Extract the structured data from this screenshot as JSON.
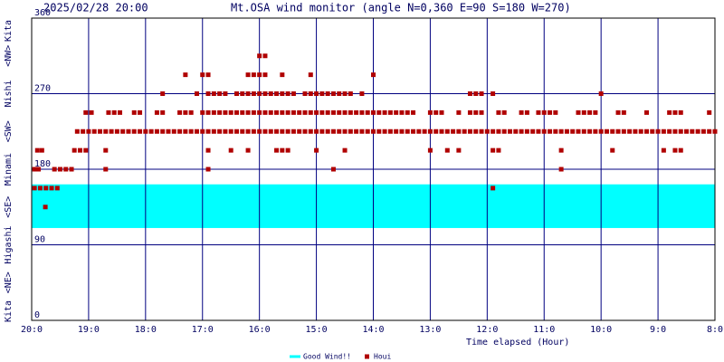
{
  "chart_data": {
    "type": "scatter",
    "timestamp": "2025/02/28 20:00",
    "title": "Mt.OSA wind monitor (angle N=0,360 E=90 S=180 W=270)",
    "x_label": "Time elapsed (Hour)",
    "y_direction_labels": [
      {
        "value": 0,
        "label": "Kita"
      },
      {
        "value": 45,
        "label": "<NE>"
      },
      {
        "value": 90,
        "label": "Higashi"
      },
      {
        "value": 135,
        "label": "<SE>"
      },
      {
        "value": 180,
        "label": "Minami"
      },
      {
        "value": 225,
        "label": "<SW>"
      },
      {
        "value": 270,
        "label": "Nishi"
      },
      {
        "value": 315,
        "label": "<NW>"
      },
      {
        "value": 360,
        "label": "Kita"
      }
    ],
    "xlim": [
      0,
      12
    ],
    "xticks": [
      {
        "value": 0,
        "label": "20:0"
      },
      {
        "value": 1,
        "label": "19:0"
      },
      {
        "value": 2,
        "label": "18:0"
      },
      {
        "value": 3,
        "label": "17:0"
      },
      {
        "value": 4,
        "label": "16:0"
      },
      {
        "value": 5,
        "label": "15:0"
      },
      {
        "value": 6,
        "label": "14:0"
      },
      {
        "value": 7,
        "label": "13:0"
      },
      {
        "value": 8,
        "label": "12:0"
      },
      {
        "value": 9,
        "label": "11:0"
      },
      {
        "value": 10,
        "label": "10:0"
      },
      {
        "value": 11,
        "label": "9:0"
      },
      {
        "value": 12,
        "label": "8:0"
      }
    ],
    "ylim": [
      0,
      360
    ],
    "yticks": [
      0,
      90,
      180,
      270,
      360
    ],
    "grid": true,
    "good_wind": {
      "name": "Good Wind!!",
      "color": "#00ffff",
      "range": [
        110,
        162
      ]
    },
    "series": [
      {
        "name": "Houi",
        "color": "#b00000",
        "x": [
          0.05,
          0.15,
          0.25,
          0.35,
          0.45,
          8.1,
          0.24,
          0.05,
          0.12,
          0.4,
          0.5,
          0.6,
          0.7,
          1.3,
          3.1,
          5.3,
          9.3,
          0.1,
          0.18,
          0.75,
          0.85,
          0.95,
          1.3,
          3.1,
          3.5,
          3.8,
          4.3,
          4.4,
          4.5,
          5.0,
          5.5,
          7.0,
          7.3,
          7.5,
          8.1,
          8.2,
          9.3,
          10.2,
          11.1,
          11.3,
          11.4,
          0.8,
          0.9,
          1.0,
          1.1,
          1.2,
          1.3,
          1.4,
          1.5,
          1.6,
          1.7,
          1.8,
          1.9,
          2.0,
          2.1,
          2.2,
          2.3,
          2.4,
          2.5,
          2.6,
          2.7,
          2.8,
          2.9,
          3.0,
          3.1,
          3.2,
          3.3,
          3.4,
          3.5,
          3.6,
          3.7,
          3.8,
          3.9,
          4.0,
          4.1,
          4.2,
          4.3,
          4.4,
          4.5,
          4.6,
          4.7,
          4.8,
          4.9,
          5.0,
          5.1,
          5.2,
          5.3,
          5.4,
          5.5,
          5.6,
          5.7,
          5.8,
          5.9,
          6.0,
          6.1,
          6.2,
          6.3,
          6.4,
          6.5,
          6.6,
          6.7,
          6.8,
          6.9,
          7.0,
          7.1,
          7.2,
          7.3,
          7.4,
          7.5,
          7.6,
          7.7,
          7.8,
          7.9,
          8.0,
          8.1,
          8.2,
          8.3,
          8.4,
          8.5,
          8.6,
          8.7,
          8.8,
          8.9,
          9.0,
          9.1,
          9.2,
          9.3,
          9.4,
          9.5,
          9.6,
          9.7,
          9.8,
          9.9,
          10.0,
          10.1,
          10.2,
          10.3,
          10.4,
          10.5,
          10.6,
          10.7,
          10.8,
          10.9,
          11.0,
          11.1,
          11.2,
          11.3,
          11.4,
          11.5,
          11.6,
          11.7,
          11.8,
          11.9,
          12.0,
          0.95,
          1.05,
          1.35,
          1.45,
          1.55,
          1.8,
          1.9,
          2.2,
          2.3,
          2.6,
          2.7,
          2.8,
          3.0,
          3.1,
          3.2,
          3.3,
          3.4,
          3.5,
          3.6,
          3.7,
          3.8,
          3.9,
          4.0,
          4.1,
          4.2,
          4.3,
          4.4,
          4.5,
          4.6,
          4.7,
          4.8,
          4.9,
          5.0,
          5.1,
          5.2,
          5.3,
          5.4,
          5.5,
          5.6,
          5.7,
          5.8,
          5.9,
          6.0,
          6.1,
          6.2,
          6.3,
          6.4,
          6.5,
          6.6,
          6.7,
          7.0,
          7.1,
          7.2,
          7.5,
          7.7,
          7.8,
          7.9,
          8.2,
          8.3,
          8.6,
          8.7,
          8.9,
          9.0,
          9.1,
          9.2,
          9.6,
          9.7,
          9.8,
          9.9,
          10.3,
          10.4,
          10.8,
          11.2,
          11.3,
          11.4,
          11.9,
          2.3,
          2.9,
          3.1,
          3.2,
          3.3,
          3.4,
          3.6,
          3.7,
          3.8,
          3.9,
          4.0,
          4.1,
          4.2,
          4.3,
          4.4,
          4.5,
          4.6,
          4.8,
          4.9,
          5.0,
          5.1,
          5.2,
          5.3,
          5.4,
          5.5,
          5.6,
          5.8,
          7.7,
          7.8,
          7.9,
          8.1,
          10.0,
          2.7,
          3.0,
          3.1,
          3.8,
          3.9,
          4.0,
          4.1,
          4.4,
          4.9,
          6.0,
          4.0,
          4.1
        ],
        "values": [
          157.5,
          157.5,
          157.5,
          157.5,
          157.5,
          157.5,
          135,
          180,
          180,
          180,
          180,
          180,
          180,
          180,
          180,
          180,
          180,
          202.5,
          202.5,
          202.5,
          202.5,
          202.5,
          202.5,
          202.5,
          202.5,
          202.5,
          202.5,
          202.5,
          202.5,
          202.5,
          202.5,
          202.5,
          202.5,
          202.5,
          202.5,
          202.5,
          202.5,
          202.5,
          202.5,
          202.5,
          202.5,
          225,
          225,
          225,
          225,
          225,
          225,
          225,
          225,
          225,
          225,
          225,
          225,
          225,
          225,
          225,
          225,
          225,
          225,
          225,
          225,
          225,
          225,
          225,
          225,
          225,
          225,
          225,
          225,
          225,
          225,
          225,
          225,
          225,
          225,
          225,
          225,
          225,
          225,
          225,
          225,
          225,
          225,
          225,
          225,
          225,
          225,
          225,
          225,
          225,
          225,
          225,
          225,
          225,
          225,
          225,
          225,
          225,
          225,
          225,
          225,
          225,
          225,
          225,
          225,
          225,
          225,
          225,
          225,
          225,
          225,
          225,
          225,
          225,
          225,
          225,
          225,
          225,
          225,
          225,
          225,
          225,
          225,
          225,
          225,
          225,
          225,
          225,
          225,
          225,
          225,
          225,
          225,
          225,
          225,
          225,
          225,
          225,
          225,
          225,
          225,
          225,
          225,
          225,
          225,
          225,
          225,
          225,
          225,
          225,
          225,
          225,
          225,
          225,
          247.5,
          247.5,
          247.5,
          247.5,
          247.5,
          247.5,
          247.5,
          247.5,
          247.5,
          247.5,
          247.5,
          247.5,
          247.5,
          247.5,
          247.5,
          247.5,
          247.5,
          247.5,
          247.5,
          247.5,
          247.5,
          247.5,
          247.5,
          247.5,
          247.5,
          247.5,
          247.5,
          247.5,
          247.5,
          247.5,
          247.5,
          247.5,
          247.5,
          247.5,
          247.5,
          247.5,
          247.5,
          247.5,
          247.5,
          247.5,
          247.5,
          247.5,
          247.5,
          247.5,
          247.5,
          247.5,
          247.5,
          247.5,
          247.5,
          247.5,
          247.5,
          247.5,
          247.5,
          247.5,
          247.5,
          247.5,
          247.5,
          247.5,
          247.5,
          247.5,
          247.5,
          247.5,
          247.5,
          247.5,
          247.5,
          247.5,
          247.5,
          247.5,
          247.5,
          247.5,
          247.5,
          247.5,
          247.5,
          247.5,
          247.5,
          247.5,
          270,
          270,
          270,
          270,
          270,
          270,
          270,
          270,
          270,
          270,
          270,
          270,
          270,
          270,
          270,
          270,
          270,
          270,
          270,
          270,
          270,
          270,
          270,
          270,
          270,
          270,
          270,
          270,
          270,
          270,
          270,
          270,
          292.5,
          292.5,
          292.5,
          292.5,
          292.5,
          292.5,
          292.5,
          292.5,
          292.5,
          292.5,
          315,
          315
        ]
      }
    ]
  }
}
